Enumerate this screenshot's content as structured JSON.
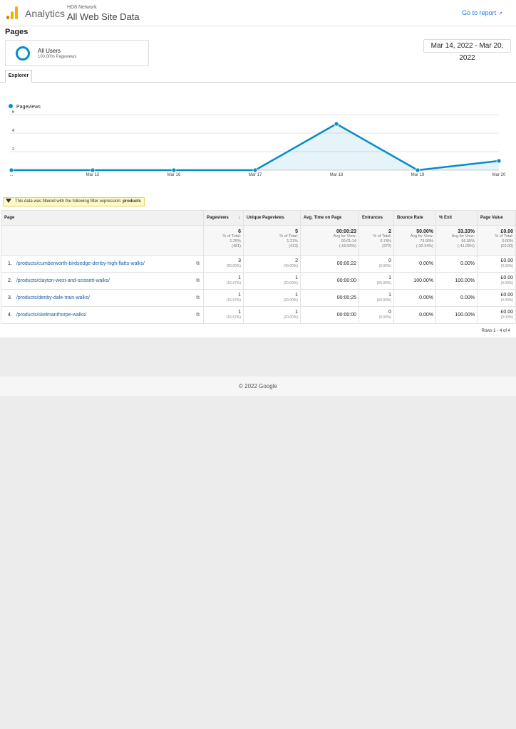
{
  "header": {
    "brand": "Analytics",
    "account": "HD8 Network",
    "view": "All Web Site Data",
    "goto_report": "Go to report",
    "goto_icon": "external-link-icon",
    "colors": {
      "accent": "#1a73e8",
      "logo_orange": "#f9ab00",
      "logo_dark_orange": "#e37400"
    }
  },
  "page_title": "Pages",
  "segment": {
    "name": "All Users",
    "sub": "100.00% Pageviews",
    "color": "#058dc7"
  },
  "date_range": "Mar 14, 2022 - Mar 20, 2022",
  "tabs": [
    {
      "label": "Explorer"
    }
  ],
  "chart_data": {
    "type": "line",
    "legend": "top-left",
    "series": [
      {
        "name": "Pageviews",
        "color": "#058dc7",
        "values": [
          0,
          0,
          0,
          0,
          5,
          0,
          1
        ]
      }
    ],
    "x": [
      "...",
      "Mar 15",
      "Mar 16",
      "Mar 17",
      "Mar 18",
      "Mar 19",
      "Mar 20"
    ],
    "ylim": [
      0,
      6
    ],
    "yticks": [
      "6",
      "4",
      "2"
    ],
    "ytick_values": [
      6,
      4,
      2
    ],
    "grid": true
  },
  "filter": {
    "text": "This data was filtered with the following filter expression:",
    "expr": "products"
  },
  "table": {
    "headers": {
      "page": "Page",
      "pageviews": "Pageviews",
      "sort_icon": "↓",
      "unique": "Unique Pageviews",
      "avgtime": "Avg. Time on Page",
      "entrances": "Entrances",
      "bounce": "Bounce Rate",
      "exit": "% Exit",
      "value": "Page Value"
    },
    "totals": {
      "pageviews": {
        "v": "6",
        "l1": "% of Total:",
        "l2": "1.25%",
        "l3": "(481)"
      },
      "unique": {
        "v": "5",
        "l1": "% of Total:",
        "l2": "1.21%",
        "l3": "(413)"
      },
      "avgtime": {
        "v": "00:00:23",
        "l1": "Avg for View:",
        "l2": "00:01:14",
        "l3": "(-69.55%)"
      },
      "entrances": {
        "v": "2",
        "l1": "% of Total:",
        "l2": "0.74%",
        "l3": "(272)"
      },
      "bounce": {
        "v": "50.00%",
        "l1": "Avg for View:",
        "l2": "73.90%",
        "l3": "(-32.34%)"
      },
      "exit": {
        "v": "33.33%",
        "l1": "Avg for View:",
        "l2": "56.55%",
        "l3": "(-41.05%)"
      },
      "value": {
        "v": "£0.00",
        "l1": "% of Total:",
        "l2": "0.00%",
        "l3": "(£0.00)"
      }
    },
    "rows": [
      {
        "num": "1.",
        "page": "/products/cumberworth-birdsedge-denby-high-flatts-walks/",
        "pv": "3",
        "pv_pct": "(50.00%)",
        "upv": "2",
        "upv_pct": "(40.00%)",
        "avg": "00:00:22",
        "ent": "0",
        "ent_pct": "(0.00%)",
        "bounce": "0.00%",
        "exit": "0.00%",
        "val": "£0.00",
        "val_pct": "(0.00%)"
      },
      {
        "num": "2.",
        "page": "/products/clayton-west-and-scissett-walks/",
        "pv": "1",
        "pv_pct": "(16.67%)",
        "upv": "1",
        "upv_pct": "(20.00%)",
        "avg": "00:00:00",
        "ent": "1",
        "ent_pct": "(50.00%)",
        "bounce": "100.00%",
        "exit": "100.00%",
        "val": "£0.00",
        "val_pct": "(0.00%)"
      },
      {
        "num": "3.",
        "page": "/products/denby-dale-train-walks/",
        "pv": "1",
        "pv_pct": "(16.67%)",
        "upv": "1",
        "upv_pct": "(20.00%)",
        "avg": "00:00:25",
        "ent": "1",
        "ent_pct": "(50.00%)",
        "bounce": "0.00%",
        "exit": "0.00%",
        "val": "£0.00",
        "val_pct": "(0.00%)"
      },
      {
        "num": "4.",
        "page": "/products/skelmanthorpe-walks/",
        "pv": "1",
        "pv_pct": "(16.67%)",
        "upv": "1",
        "upv_pct": "(20.00%)",
        "avg": "00:00:00",
        "ent": "0",
        "ent_pct": "(0.00%)",
        "bounce": "0.00%",
        "exit": "100.00%",
        "val": "£0.00",
        "val_pct": "(0.00%)"
      }
    ],
    "page_icon": "popout-icon",
    "rows_label": "Rows 1 - 4 of 4"
  },
  "footer": "© 2022 Google"
}
